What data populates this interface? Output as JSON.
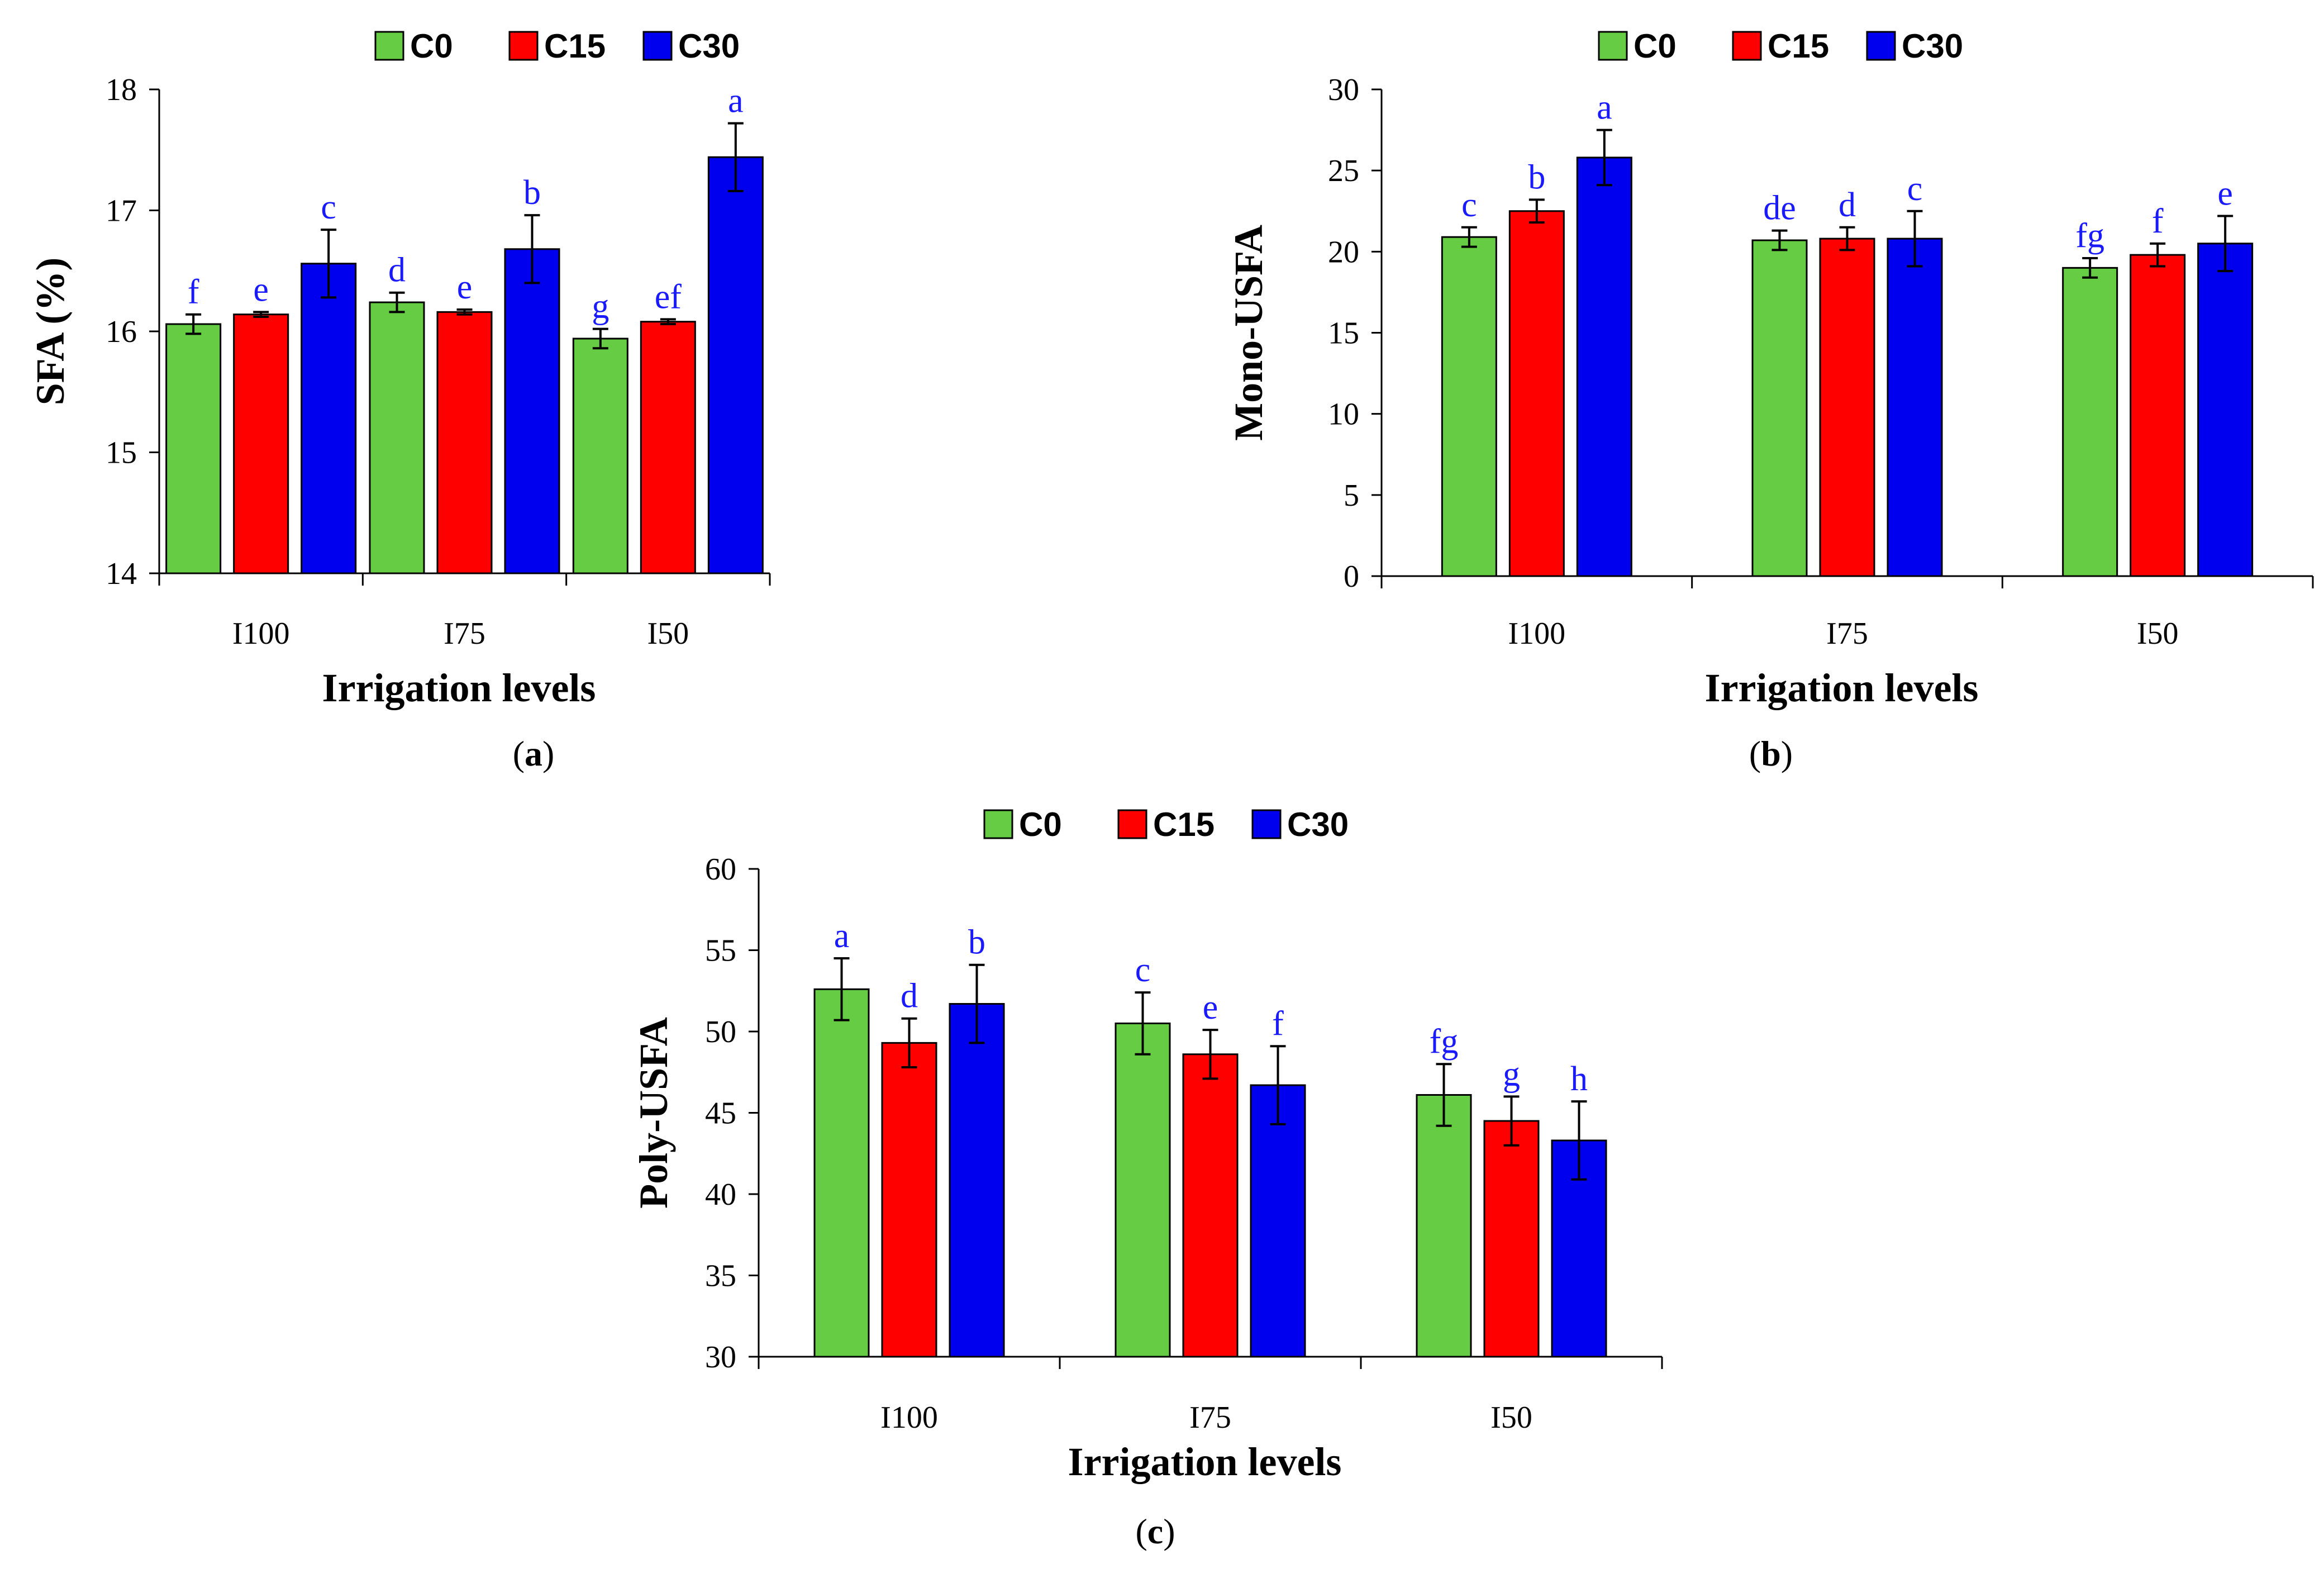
{
  "colors": {
    "C0": "#66cc44",
    "C15": "#ff0000",
    "C30": "#0000ee",
    "sig": "#1a1aff"
  },
  "legend": [
    "C0",
    "C15",
    "C30"
  ],
  "chart_data": [
    {
      "id": "a",
      "panel_label": "a",
      "type": "bar",
      "title": "",
      "xlabel": "Irrigation levels",
      "ylabel": "SFA (%)",
      "ylim": [
        14,
        18
      ],
      "yticks": [
        14,
        15,
        16,
        17,
        18
      ],
      "categories": [
        "I100",
        "I75",
        "I50"
      ],
      "series": [
        {
          "name": "C0",
          "values": [
            16.06,
            16.24,
            15.94
          ],
          "errors": [
            0.08,
            0.08,
            0.08
          ],
          "letters": [
            "f",
            "d",
            "g"
          ]
        },
        {
          "name": "C15",
          "values": [
            16.14,
            16.16,
            16.08
          ],
          "errors": [
            0.02,
            0.02,
            0.02
          ],
          "letters": [
            "e",
            "e",
            "ef"
          ]
        },
        {
          "name": "C30",
          "values": [
            16.56,
            16.68,
            17.44
          ],
          "errors": [
            0.28,
            0.28,
            0.28
          ],
          "letters": [
            "c",
            "b",
            "a"
          ]
        }
      ]
    },
    {
      "id": "b",
      "panel_label": "b",
      "type": "bar",
      "title": "",
      "xlabel": "Irrigation levels",
      "ylabel": "Mono-USFA",
      "ylim": [
        0,
        30
      ],
      "yticks": [
        0,
        5,
        10,
        15,
        20,
        25,
        30
      ],
      "categories": [
        "I100",
        "I75",
        "I50"
      ],
      "series": [
        {
          "name": "C0",
          "values": [
            20.9,
            20.7,
            19.0
          ],
          "errors": [
            0.6,
            0.6,
            0.6
          ],
          "letters": [
            "c",
            "de",
            "fg"
          ]
        },
        {
          "name": "C15",
          "values": [
            22.5,
            20.8,
            19.8
          ],
          "errors": [
            0.7,
            0.7,
            0.7
          ],
          "letters": [
            "b",
            "d",
            "f"
          ]
        },
        {
          "name": "C30",
          "values": [
            25.8,
            20.8,
            20.5
          ],
          "errors": [
            1.7,
            1.7,
            1.7
          ],
          "letters": [
            "a",
            "c",
            "e"
          ]
        }
      ]
    },
    {
      "id": "c",
      "panel_label": "c",
      "type": "bar",
      "title": "",
      "xlabel": "Irrigation levels",
      "ylabel": "Poly-USFA",
      "ylim": [
        30,
        60
      ],
      "yticks": [
        30,
        35,
        40,
        45,
        50,
        55,
        60
      ],
      "categories": [
        "I100",
        "I75",
        "I50"
      ],
      "series": [
        {
          "name": "C0",
          "values": [
            52.6,
            50.5,
            46.1
          ],
          "errors": [
            1.9,
            1.9,
            1.9
          ],
          "letters": [
            "a",
            "c",
            "fg"
          ]
        },
        {
          "name": "C15",
          "values": [
            49.3,
            48.6,
            44.5
          ],
          "errors": [
            1.5,
            1.5,
            1.5
          ],
          "letters": [
            "d",
            "e",
            "g"
          ]
        },
        {
          "name": "C30",
          "values": [
            51.7,
            46.7,
            43.3
          ],
          "errors": [
            2.4,
            2.4,
            2.4
          ],
          "letters": [
            "b",
            "f",
            "h"
          ]
        }
      ]
    }
  ]
}
